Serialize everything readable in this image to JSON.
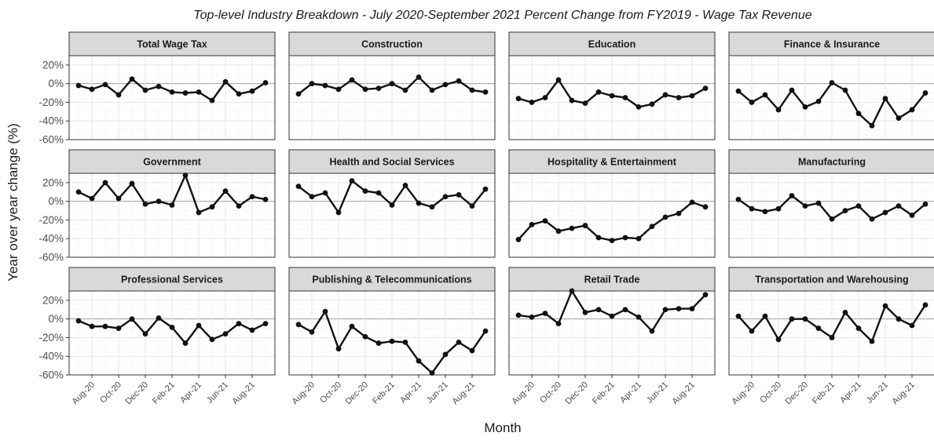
{
  "chart_data": {
    "type": "line",
    "title": "Top-level Industry Breakdown - July 2020-September 2021 Percent Change from FY2019 - Wage Tax Revenue",
    "xlabel": "Month",
    "ylabel": "Year over year change (%)",
    "ylim": [
      -60,
      30
    ],
    "yticks": [
      20,
      0,
      -20,
      -40,
      -60
    ],
    "ytick_labels": [
      "20%",
      "0%",
      "-20%",
      "-40%",
      "-60%"
    ],
    "x": [
      "Jul-20",
      "Aug-20",
      "Sep-20",
      "Oct-20",
      "Nov-20",
      "Dec-20",
      "Jan-21",
      "Feb-21",
      "Mar-21",
      "Apr-21",
      "May-21",
      "Jun-21",
      "Jul-21",
      "Aug-21",
      "Sep-21"
    ],
    "xtick_labels": [
      "Aug-20",
      "Oct-20",
      "Dec-20",
      "Feb-21",
      "Apr-21",
      "Jun-21",
      "Aug-21"
    ],
    "grid": true,
    "layout": "facet 3x4",
    "facets": [
      {
        "title": "Total Wage Tax",
        "values": [
          -2,
          -6,
          -1,
          -12,
          5,
          -7,
          -3,
          -9,
          -10,
          -9,
          -18,
          2,
          -11,
          -8,
          1
        ]
      },
      {
        "title": "Construction",
        "values": [
          -11,
          0,
          -2,
          -6,
          4,
          -6,
          -5,
          0,
          -7,
          7,
          -7,
          -1,
          3,
          -7,
          -9
        ]
      },
      {
        "title": "Education",
        "values": [
          -16,
          -20,
          -15,
          4,
          -18,
          -21,
          -9,
          -13,
          -15,
          -25,
          -22,
          -12,
          -15,
          -13,
          -5
        ]
      },
      {
        "title": "Finance & Insurance",
        "values": [
          -8,
          -20,
          -12,
          -28,
          -7,
          -25,
          -19,
          1,
          -7,
          -32,
          -45,
          -16,
          -37,
          -28,
          -10
        ]
      },
      {
        "title": "Government",
        "values": [
          10,
          3,
          20,
          3,
          19,
          -3,
          0,
          -4,
          28,
          -12,
          -6,
          11,
          -5,
          5,
          2
        ]
      },
      {
        "title": "Health and Social Services",
        "values": [
          16,
          5,
          9,
          -12,
          22,
          11,
          9,
          -4,
          17,
          -2,
          -6,
          5,
          7,
          -5,
          13
        ]
      },
      {
        "title": "Hospitality & Entertainment",
        "values": [
          -41,
          -25,
          -21,
          -32,
          -29,
          -26,
          -39,
          -42,
          -39,
          -40,
          -27,
          -17,
          -13,
          -1,
          -6
        ]
      },
      {
        "title": "Manufacturing",
        "values": [
          2,
          -8,
          -11,
          -8,
          6,
          -5,
          -2,
          -19,
          -10,
          -5,
          -19,
          -12,
          -5,
          -15,
          -3
        ]
      },
      {
        "title": "Professional  Services",
        "values": [
          -2,
          -8,
          -8,
          -10,
          0,
          -16,
          1,
          -9,
          -26,
          -7,
          -22,
          -16,
          -5,
          -12,
          -5
        ]
      },
      {
        "title": "Publishing & Telecommunications",
        "values": [
          -6,
          -14,
          8,
          -32,
          -8,
          -19,
          -26,
          -24,
          -25,
          -45,
          -58,
          -38,
          -25,
          -34,
          -13
        ]
      },
      {
        "title": "Retail Trade",
        "values": [
          4,
          2,
          6,
          -5,
          30,
          7,
          10,
          3,
          10,
          2,
          -13,
          10,
          11,
          11,
          26
        ]
      },
      {
        "title": "Transportation and Warehousing",
        "values": [
          3,
          -13,
          3,
          -22,
          0,
          0,
          -10,
          -20,
          7,
          -10,
          -24,
          14,
          0,
          -7,
          15
        ]
      }
    ]
  }
}
